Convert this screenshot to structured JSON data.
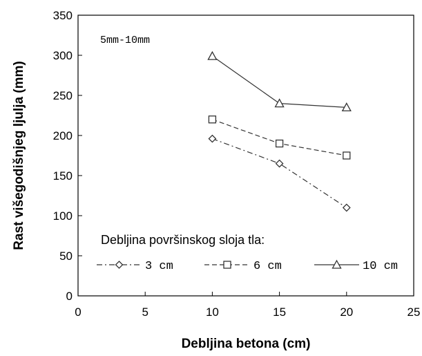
{
  "chart_data": {
    "type": "line",
    "xlabel": "Debljina betona (cm)",
    "ylabel": "Rast višegodišnjeg ljulja (mm)",
    "xlim": [
      0,
      25
    ],
    "ylim": [
      0,
      350
    ],
    "x_ticks": [
      "0",
      "5",
      "10",
      "15",
      "20",
      "25"
    ],
    "y_ticks": [
      "0",
      "50",
      "100",
      "150",
      "200",
      "250",
      "300",
      "350"
    ],
    "annotation": "5mm-10mm",
    "legend_title": "Debljina površinskog sloja tla:",
    "legend_position": "bottom",
    "grid": false,
    "series": [
      {
        "name": "3 cm",
        "marker": "diamond",
        "line_style": "dash-dot",
        "x": [
          10,
          15,
          20
        ],
        "y": [
          196,
          165,
          110
        ]
      },
      {
        "name": "6 cm",
        "marker": "square",
        "line_style": "dashed",
        "x": [
          10,
          15,
          20
        ],
        "y": [
          220,
          190,
          175
        ]
      },
      {
        "name": "10 cm",
        "marker": "triangle",
        "line_style": "solid",
        "x": [
          10,
          15,
          20
        ],
        "y": [
          299,
          240,
          235
        ]
      }
    ]
  }
}
